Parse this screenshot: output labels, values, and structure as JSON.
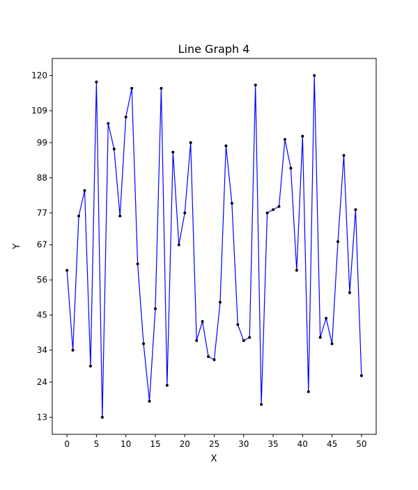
{
  "chart_data": {
    "type": "line",
    "title": "Line Graph 4",
    "xlabel": "X",
    "ylabel": "Y",
    "xlim": [
      -2.5,
      52.5
    ],
    "ylim": [
      7.65,
      125.35
    ],
    "x_ticks": [
      0,
      5,
      10,
      15,
      20,
      25,
      30,
      35,
      40,
      45,
      50
    ],
    "y_ticks": [
      13,
      24,
      34,
      45,
      56,
      67,
      77,
      88,
      99,
      109,
      120
    ],
    "grid": false,
    "legend": "none",
    "colors": {
      "line": "#0000ff",
      "marker": "#000000"
    },
    "series": [
      {
        "x": [
          0,
          1,
          2,
          3,
          4,
          5,
          6,
          7,
          8,
          9,
          10,
          11,
          12,
          13,
          14,
          15,
          16,
          17,
          18,
          19,
          20,
          21,
          22,
          23,
          24,
          25,
          26,
          27,
          28,
          29,
          30,
          31,
          32,
          33,
          34,
          35,
          36,
          37,
          38,
          39,
          40,
          41,
          42,
          43,
          44,
          45,
          46,
          47,
          48,
          49,
          50
        ],
        "y": [
          59,
          34,
          76,
          84,
          29,
          118,
          13,
          105,
          97,
          76,
          107,
          116,
          61,
          36,
          18,
          47,
          116,
          23,
          96,
          67,
          77,
          99,
          37,
          43,
          32,
          31,
          49,
          98,
          80,
          42,
          37,
          38,
          117,
          17,
          77,
          78,
          79,
          100,
          91,
          59,
          101,
          21,
          120,
          38,
          44,
          36,
          68,
          95,
          52,
          78,
          26
        ]
      }
    ]
  }
}
